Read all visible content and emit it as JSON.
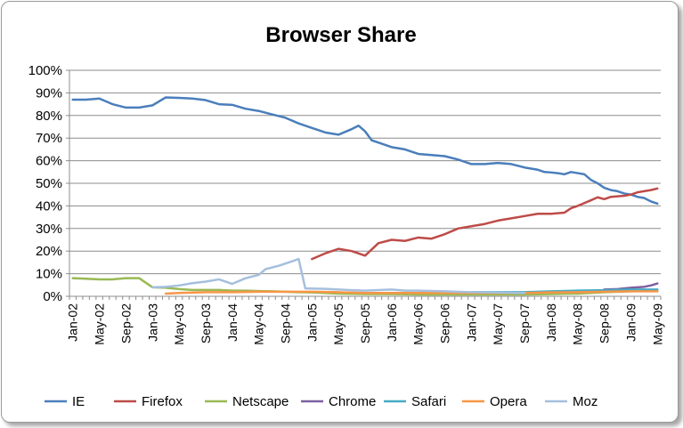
{
  "chart_data": {
    "type": "line",
    "title": "Browser Share",
    "xlabel": "",
    "ylabel": "",
    "ylim": [
      0,
      1
    ],
    "y_ticks": [
      "0%",
      "10%",
      "20%",
      "30%",
      "40%",
      "50%",
      "60%",
      "70%",
      "80%",
      "90%",
      "100%"
    ],
    "x_ticks": [
      "Jan-02",
      "May-02",
      "Sep-02",
      "Jan-03",
      "May-03",
      "Sep-03",
      "Jan-04",
      "May-04",
      "Sep-04",
      "Jan-05",
      "May-05",
      "Sep-05",
      "Jan-06",
      "May-06",
      "Sep-06",
      "Jan-07",
      "May-07",
      "Sep-07",
      "Jan-08",
      "May-08",
      "Sep-08",
      "Jan-09",
      "May-09"
    ],
    "grid": true,
    "legend_position": "bottom",
    "series": [
      {
        "name": "IE",
        "color": "#4a7ebb",
        "points": [
          [
            "Jan-02",
            0.87
          ],
          [
            "Mar-02",
            0.87
          ],
          [
            "May-02",
            0.875
          ],
          [
            "Jul-02",
            0.85
          ],
          [
            "Sep-02",
            0.835
          ],
          [
            "Nov-02",
            0.835
          ],
          [
            "Jan-03",
            0.845
          ],
          [
            "Mar-03",
            0.88
          ],
          [
            "May-03",
            0.878
          ],
          [
            "Jul-03",
            0.875
          ],
          [
            "Sep-03",
            0.868
          ],
          [
            "Nov-03",
            0.85
          ],
          [
            "Jan-04",
            0.847
          ],
          [
            "Mar-04",
            0.83
          ],
          [
            "May-04",
            0.82
          ],
          [
            "Jul-04",
            0.805
          ],
          [
            "Sep-04",
            0.79
          ],
          [
            "Nov-04",
            0.765
          ],
          [
            "Jan-05",
            0.745
          ],
          [
            "Mar-05",
            0.725
          ],
          [
            "May-05",
            0.715
          ],
          [
            "Jul-05",
            0.74
          ],
          [
            "Aug-05",
            0.755
          ],
          [
            "Sep-05",
            0.73
          ],
          [
            "Oct-05",
            0.69
          ],
          [
            "Jan-06",
            0.66
          ],
          [
            "Mar-06",
            0.65
          ],
          [
            "May-06",
            0.63
          ],
          [
            "Jul-06",
            0.625
          ],
          [
            "Sep-06",
            0.62
          ],
          [
            "Nov-06",
            0.605
          ],
          [
            "Jan-07",
            0.585
          ],
          [
            "Mar-07",
            0.585
          ],
          [
            "May-07",
            0.59
          ],
          [
            "Jul-07",
            0.585
          ],
          [
            "Sep-07",
            0.57
          ],
          [
            "Nov-07",
            0.56
          ],
          [
            "Dec-07",
            0.55
          ],
          [
            "Jan-08",
            0.548
          ],
          [
            "Feb-08",
            0.545
          ],
          [
            "Mar-08",
            0.54
          ],
          [
            "Apr-08",
            0.55
          ],
          [
            "May-08",
            0.545
          ],
          [
            "Jun-08",
            0.54
          ],
          [
            "Jul-08",
            0.515
          ],
          [
            "Aug-08",
            0.5
          ],
          [
            "Sep-08",
            0.48
          ],
          [
            "Oct-08",
            0.47
          ],
          [
            "Nov-08",
            0.465
          ],
          [
            "Dec-08",
            0.455
          ],
          [
            "Jan-09",
            0.45
          ],
          [
            "Feb-09",
            0.44
          ],
          [
            "Mar-09",
            0.435
          ],
          [
            "Apr-09",
            0.42
          ],
          [
            "May-09",
            0.41
          ]
        ]
      },
      {
        "name": "Firefox",
        "color": "#be4b48",
        "points": [
          [
            "Jan-05",
            0.165
          ],
          [
            "Mar-05",
            0.19
          ],
          [
            "May-05",
            0.21
          ],
          [
            "Jul-05",
            0.2
          ],
          [
            "Sep-05",
            0.18
          ],
          [
            "Nov-05",
            0.235
          ],
          [
            "Jan-06",
            0.25
          ],
          [
            "Mar-06",
            0.245
          ],
          [
            "May-06",
            0.26
          ],
          [
            "Jul-06",
            0.255
          ],
          [
            "Sep-06",
            0.275
          ],
          [
            "Nov-06",
            0.3
          ],
          [
            "Jan-07",
            0.31
          ],
          [
            "Mar-07",
            0.32
          ],
          [
            "May-07",
            0.335
          ],
          [
            "Jul-07",
            0.345
          ],
          [
            "Sep-07",
            0.355
          ],
          [
            "Nov-07",
            0.365
          ],
          [
            "Jan-08",
            0.365
          ],
          [
            "Mar-08",
            0.37
          ],
          [
            "Apr-08",
            0.39
          ],
          [
            "May-08",
            0.4
          ],
          [
            "Jul-08",
            0.425
          ],
          [
            "Aug-08",
            0.438
          ],
          [
            "Sep-08",
            0.43
          ],
          [
            "Oct-08",
            0.44
          ],
          [
            "Dec-08",
            0.445
          ],
          [
            "Jan-09",
            0.45
          ],
          [
            "Feb-09",
            0.46
          ],
          [
            "Mar-09",
            0.465
          ],
          [
            "Apr-09",
            0.47
          ],
          [
            "May-09",
            0.477
          ]
        ]
      },
      {
        "name": "Netscape",
        "color": "#98b954",
        "points": [
          [
            "Jan-02",
            0.08
          ],
          [
            "Mar-02",
            0.078
          ],
          [
            "May-02",
            0.075
          ],
          [
            "Jul-02",
            0.075
          ],
          [
            "Sep-02",
            0.08
          ],
          [
            "Nov-02",
            0.08
          ],
          [
            "Jan-03",
            0.04
          ],
          [
            "Mar-03",
            0.038
          ],
          [
            "May-03",
            0.032
          ],
          [
            "Jul-03",
            0.028
          ],
          [
            "Sep-03",
            0.028
          ],
          [
            "Nov-03",
            0.028
          ],
          [
            "Jan-04",
            0.025
          ],
          [
            "Mar-04",
            0.025
          ],
          [
            "May-04",
            0.023
          ],
          [
            "Jul-04",
            0.022
          ],
          [
            "Sep-04",
            0.02
          ],
          [
            "Nov-04",
            0.018
          ],
          [
            "Jan-05",
            0.017
          ],
          [
            "May-05",
            0.012
          ],
          [
            "Sep-05",
            0.01
          ],
          [
            "Jan-06",
            0.01
          ],
          [
            "May-06",
            0.008
          ],
          [
            "Sep-06",
            0.008
          ],
          [
            "Jan-07",
            0.008
          ],
          [
            "Sep-07",
            0.008
          ],
          [
            "Jan-08",
            0.01
          ],
          [
            "May-08",
            0.012
          ],
          [
            "Sep-08",
            0.018
          ],
          [
            "Jan-09",
            0.022
          ],
          [
            "May-09",
            0.025
          ]
        ]
      },
      {
        "name": "Chrome",
        "color": "#7d60a0",
        "points": [
          [
            "Sep-08",
            0.03
          ],
          [
            "Nov-08",
            0.032
          ],
          [
            "Jan-09",
            0.038
          ],
          [
            "Mar-09",
            0.042
          ],
          [
            "Apr-09",
            0.048
          ],
          [
            "May-09",
            0.057
          ]
        ]
      },
      {
        "name": "Safari",
        "color": "#46aac5",
        "points": [
          [
            "Jan-07",
            0.018
          ],
          [
            "May-07",
            0.018
          ],
          [
            "Sep-07",
            0.018
          ],
          [
            "Jan-08",
            0.022
          ],
          [
            "May-08",
            0.025
          ],
          [
            "Sep-08",
            0.027
          ],
          [
            "Jan-09",
            0.03
          ],
          [
            "May-09",
            0.03
          ]
        ]
      },
      {
        "name": "Opera",
        "color": "#f79646",
        "points": [
          [
            "Mar-03",
            0.012
          ],
          [
            "May-03",
            0.015
          ],
          [
            "Sep-03",
            0.018
          ],
          [
            "Jan-04",
            0.018
          ],
          [
            "May-04",
            0.02
          ],
          [
            "Sep-04",
            0.02
          ],
          [
            "Jan-05",
            0.02
          ],
          [
            "May-05",
            0.018
          ],
          [
            "Sep-05",
            0.015
          ],
          [
            "Jan-06",
            0.015
          ],
          [
            "May-06",
            0.015
          ],
          [
            "Sep-06",
            0.015
          ],
          [
            "Jan-07",
            0.015
          ],
          [
            "May-07",
            0.015
          ],
          [
            "Sep-07",
            0.015
          ],
          [
            "Jan-08",
            0.017
          ],
          [
            "May-08",
            0.018
          ],
          [
            "Sep-08",
            0.02
          ],
          [
            "Jan-09",
            0.022
          ],
          [
            "May-09",
            0.022
          ]
        ]
      },
      {
        "name": "Moz",
        "color": "#a5bfdd",
        "points": [
          [
            "Jan-03",
            0.04
          ],
          [
            "Mar-03",
            0.042
          ],
          [
            "May-03",
            0.048
          ],
          [
            "Jul-03",
            0.058
          ],
          [
            "Sep-03",
            0.065
          ],
          [
            "Nov-03",
            0.075
          ],
          [
            "Jan-04",
            0.055
          ],
          [
            "Mar-04",
            0.08
          ],
          [
            "May-04",
            0.095
          ],
          [
            "Jun-04",
            0.12
          ],
          [
            "Aug-04",
            0.135
          ],
          [
            "Oct-04",
            0.155
          ],
          [
            "Nov-04",
            0.165
          ],
          [
            "Dec-04",
            0.035
          ],
          [
            "Mar-05",
            0.033
          ],
          [
            "May-05",
            0.03
          ],
          [
            "Jul-05",
            0.027
          ],
          [
            "Sep-05",
            0.025
          ],
          [
            "Jan-06",
            0.03
          ],
          [
            "Mar-06",
            0.025
          ],
          [
            "May-06",
            0.025
          ],
          [
            "Sep-06",
            0.022
          ],
          [
            "Jan-07",
            0.018
          ],
          [
            "Sep-07",
            0.015
          ]
        ]
      }
    ]
  }
}
